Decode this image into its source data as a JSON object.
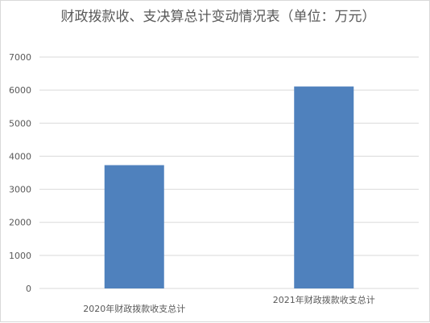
{
  "chart_data": {
    "type": "bar",
    "title": "财政拨款收、支决算总计变动情况表（单位：万元）",
    "categories": [
      "2020年财政拨款收支总计",
      "2021年财政拨款收支总计"
    ],
    "series": [
      {
        "values": [
          3730,
          6110
        ]
      }
    ],
    "ylim": [
      0,
      7000
    ],
    "yticks": [
      0,
      1000,
      2000,
      3000,
      4000,
      5000,
      6000,
      7000
    ],
    "grid": true,
    "legend": "none",
    "bar_color": "#4f81bd",
    "grid_color": "#d9d9d9"
  }
}
